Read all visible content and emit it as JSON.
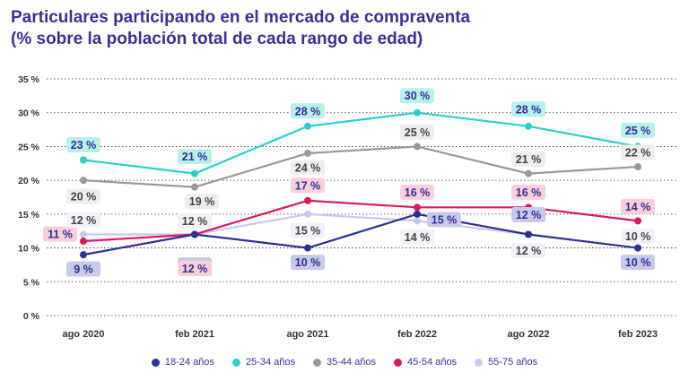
{
  "title_line1": "Particulares participando en el mercado de compraventa",
  "title_line2": "(% sobre la población total de cada rango de edad)",
  "chart_data": {
    "type": "line",
    "categories": [
      "ago 2020",
      "feb 2021",
      "ago 2021",
      "feb 2022",
      "ago 2022",
      "feb 2023"
    ],
    "ylim": [
      0,
      35
    ],
    "yticks": [
      "0 %",
      "5 %",
      "10 %",
      "15 %",
      "20 %",
      "25 %",
      "30 %",
      "35 %"
    ],
    "grid": true,
    "legend_position": "bottom",
    "series": [
      {
        "name": "18-24 años",
        "color": "#2e3192",
        "values": [
          9,
          12,
          10,
          15,
          12,
          10
        ],
        "labels": [
          "9 %",
          "12 %",
          "10 %",
          "15 %",
          "12 %",
          "10 %"
        ]
      },
      {
        "name": "25-34 años",
        "color": "#2ecfc8",
        "values": [
          23,
          21,
          28,
          30,
          28,
          25
        ],
        "labels": [
          "23 %",
          "21 %",
          "28 %",
          "30 %",
          "28 %",
          "25 %"
        ]
      },
      {
        "name": "35-44 años",
        "color": "#999999",
        "values": [
          20,
          19,
          24,
          25,
          21,
          22
        ],
        "labels": [
          "20 %",
          "19 %",
          "24 %",
          "25 %",
          "21 %",
          "22 %"
        ]
      },
      {
        "name": "45-54 años",
        "color": "#d81b60",
        "values": [
          11,
          12,
          17,
          16,
          16,
          14
        ],
        "labels": [
          "11 %",
          "12 %",
          "17 %",
          "16 %",
          "16 %",
          "14 %"
        ]
      },
      {
        "name": "55-75 años",
        "color": "#c9c9ec",
        "values": [
          12,
          12,
          15,
          14,
          12,
          10
        ],
        "labels": [
          "12 %",
          "12 %",
          "15 %",
          "14 %",
          "12 %",
          "10 %"
        ]
      }
    ]
  }
}
